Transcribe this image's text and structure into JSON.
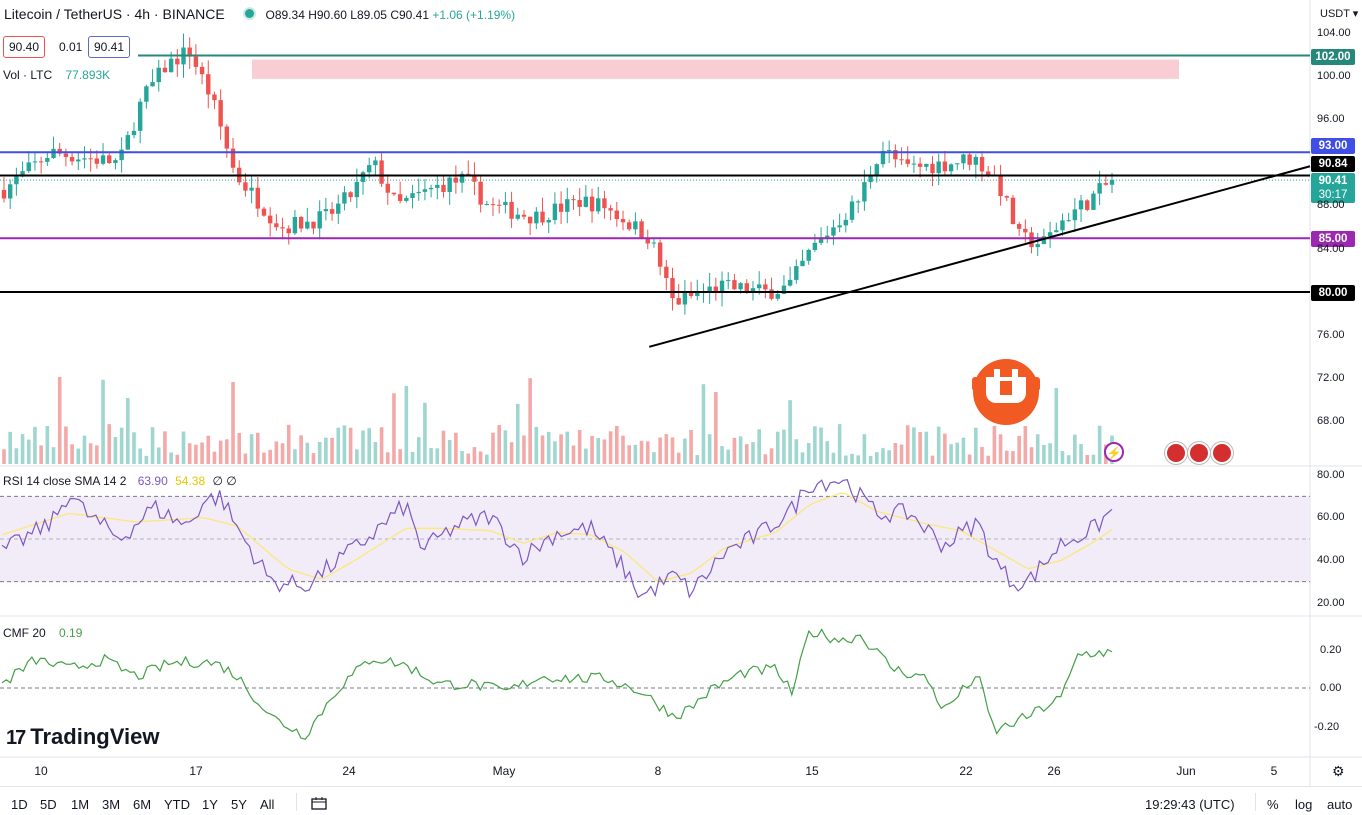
{
  "header": {
    "symbol": "Litecoin / TetherUS · 4h · BINANCE",
    "open": "O89.34",
    "high": "H90.60",
    "low": "L89.05",
    "close": "C90.41",
    "change": "+1.06 (+1.19%)"
  },
  "price_boxes": {
    "bid": "90.40",
    "spread": "0.01",
    "ask": "90.41"
  },
  "volume_label": {
    "name": "Vol · LTC",
    "value": "77.893K"
  },
  "currency": "USDT",
  "rsi_label": {
    "name": "RSI 14 close SMA 14 2",
    "rsi": "63.90",
    "sma": "54.38",
    "extra": "∅ ∅"
  },
  "cmf_label": {
    "name": "CMF 20",
    "value": "0.19"
  },
  "logo": {
    "mark": "17",
    "text": "TradingView"
  },
  "timeframes": [
    "1D",
    "5D",
    "1M",
    "3M",
    "6M",
    "YTD",
    "1Y",
    "5Y",
    "All"
  ],
  "clock": "19:29:43 (UTC)",
  "bottom_right": {
    "percent": "%",
    "log": "log",
    "auto": "auto"
  },
  "colors": {
    "up": "#26a69a",
    "down": "#ef5350",
    "rsi": "#7e57c2",
    "rsi_sma": "#fde77a",
    "cmf": "#43a047",
    "blue_line": "#3f4ee4",
    "purple_line": "#9c27b0",
    "teal_line": "#26887a"
  },
  "chart_data": [
    {
      "type": "candlestick",
      "title": "Litecoin / TetherUS · 4h · BINANCE",
      "x_ticks": [
        "10",
        "17",
        "24",
        "May",
        "8",
        "15",
        "22",
        "26",
        "Jun",
        "5"
      ],
      "y_ticks": [
        "104.00",
        "100.00",
        "96.00",
        "88.00",
        "84.00",
        "76.00",
        "72.00",
        "68.00"
      ],
      "ylim": [
        64,
        105
      ],
      "close_path": [
        [
          10,
          89.5
        ],
        [
          12,
          93
        ],
        [
          15,
          92
        ],
        [
          16,
          98
        ],
        [
          17,
          101
        ],
        [
          18,
          102.5
        ],
        [
          19,
          98
        ],
        [
          20,
          91
        ],
        [
          22,
          86
        ],
        [
          24,
          87
        ],
        [
          25,
          89
        ],
        [
          26,
          92
        ],
        [
          27,
          88
        ],
        [
          29,
          90
        ],
        [
          30,
          90.5
        ],
        [
          31,
          88
        ],
        [
          33,
          87
        ],
        [
          35,
          88.5
        ],
        [
          36,
          88
        ],
        [
          38,
          85
        ],
        [
          39,
          79
        ],
        [
          41,
          80.5
        ],
        [
          43,
          80
        ],
        [
          44,
          80.5
        ],
        [
          45,
          84
        ],
        [
          47,
          88.5
        ],
        [
          48,
          93.5
        ],
        [
          49,
          91.5
        ],
        [
          51,
          92
        ],
        [
          52,
          92.5
        ],
        [
          53,
          90.5
        ],
        [
          54,
          85
        ],
        [
          55,
          84.5
        ],
        [
          56,
          87
        ],
        [
          57,
          88.5
        ],
        [
          58,
          90.4
        ]
      ],
      "horizontal_levels": [
        {
          "label": "102.00",
          "value": 102.0,
          "color": "#26887a"
        },
        {
          "label": "93.00",
          "value": 93.0,
          "color": "#3f4ee4"
        },
        {
          "label": "90.84",
          "value": 90.84,
          "color": "#000000"
        },
        {
          "label": "85.00",
          "value": 85.0,
          "color": "#9c27b0"
        },
        {
          "label": "80.00",
          "value": 80.0,
          "color": "#000000"
        }
      ],
      "current_price": {
        "label": "90.41",
        "countdown": "30:17",
        "value": 90.41
      },
      "resistance_zone": [
        100.2,
        102.0
      ],
      "trendline": [
        [
          39.3,
          74.9
        ],
        [
          68,
          91.7
        ]
      ]
    },
    {
      "type": "line",
      "name": "RSI 14 close SMA 14 2",
      "y_ticks": [
        "80.00",
        "60.00",
        "40.00",
        "20.00"
      ],
      "ylim": [
        18,
        82
      ],
      "band": [
        30,
        70
      ],
      "rsi_path": [
        [
          0,
          44
        ],
        [
          3,
          58
        ],
        [
          4,
          72
        ],
        [
          5,
          62
        ],
        [
          7,
          50
        ],
        [
          9,
          65
        ],
        [
          11,
          56
        ],
        [
          12,
          68
        ],
        [
          13,
          70
        ],
        [
          14,
          55
        ],
        [
          16,
          30
        ],
        [
          18,
          28
        ],
        [
          20,
          40
        ],
        [
          22,
          52
        ],
        [
          24,
          66
        ],
        [
          25,
          45
        ],
        [
          27,
          56
        ],
        [
          29,
          61
        ],
        [
          31,
          42
        ],
        [
          33,
          53
        ],
        [
          35,
          55
        ],
        [
          37,
          36
        ],
        [
          38,
          23
        ],
        [
          40,
          33
        ],
        [
          41,
          25
        ],
        [
          43,
          44
        ],
        [
          45,
          52
        ],
        [
          47,
          64
        ],
        [
          48,
          76
        ],
        [
          50,
          78
        ],
        [
          52,
          62
        ],
        [
          54,
          62
        ],
        [
          56,
          47
        ],
        [
          58,
          58
        ],
        [
          59,
          40
        ],
        [
          60,
          30
        ],
        [
          61,
          30
        ],
        [
          63,
          48
        ],
        [
          65,
          55
        ],
        [
          66,
          63.9
        ]
      ],
      "sma_path": [
        [
          0,
          52
        ],
        [
          4,
          62
        ],
        [
          8,
          58
        ],
        [
          12,
          60
        ],
        [
          14,
          56
        ],
        [
          17,
          36
        ],
        [
          19,
          31
        ],
        [
          21,
          40
        ],
        [
          24,
          55
        ],
        [
          26,
          55
        ],
        [
          29,
          54
        ],
        [
          31,
          48
        ],
        [
          33,
          53
        ],
        [
          35,
          52
        ],
        [
          37,
          44
        ],
        [
          39,
          30
        ],
        [
          41,
          34
        ],
        [
          43,
          46
        ],
        [
          46,
          53
        ],
        [
          48,
          66
        ],
        [
          50,
          72
        ],
        [
          52,
          63
        ],
        [
          55,
          57
        ],
        [
          57,
          54
        ],
        [
          59,
          45
        ],
        [
          61,
          36
        ],
        [
          63,
          40
        ],
        [
          65,
          49
        ],
        [
          66,
          54.38
        ]
      ]
    },
    {
      "type": "line",
      "name": "CMF 20",
      "y_ticks": [
        "0.20",
        "0.00",
        "-0.20"
      ],
      "ylim": [
        -0.28,
        0.32
      ],
      "path": [
        [
          0,
          0.02
        ],
        [
          2,
          0.15
        ],
        [
          4,
          0.1
        ],
        [
          6,
          0.15
        ],
        [
          8,
          0.06
        ],
        [
          10,
          0.13
        ],
        [
          12,
          0.14
        ],
        [
          13,
          0.12
        ],
        [
          14,
          0.06
        ],
        [
          16,
          -0.15
        ],
        [
          18,
          -0.25
        ],
        [
          20,
          0.0
        ],
        [
          22,
          0.16
        ],
        [
          24,
          0.12
        ],
        [
          26,
          0.02
        ],
        [
          28,
          0.02
        ],
        [
          30,
          -0.02
        ],
        [
          32,
          0.06
        ],
        [
          34,
          0.05
        ],
        [
          36,
          0.05
        ],
        [
          38,
          -0.02
        ],
        [
          40,
          -0.15
        ],
        [
          41,
          -0.1
        ],
        [
          42,
          -0.02
        ],
        [
          44,
          0.08
        ],
        [
          46,
          0.1
        ],
        [
          47,
          -0.03
        ],
        [
          48,
          0.3
        ],
        [
          50,
          0.25
        ],
        [
          51,
          0.28
        ],
        [
          53,
          0.1
        ],
        [
          55,
          0.05
        ],
        [
          56,
          -0.12
        ],
        [
          58,
          0.07
        ],
        [
          59,
          -0.23
        ],
        [
          61,
          -0.15
        ],
        [
          63,
          -0.05
        ],
        [
          64,
          0.18
        ],
        [
          66,
          0.19
        ]
      ]
    }
  ]
}
